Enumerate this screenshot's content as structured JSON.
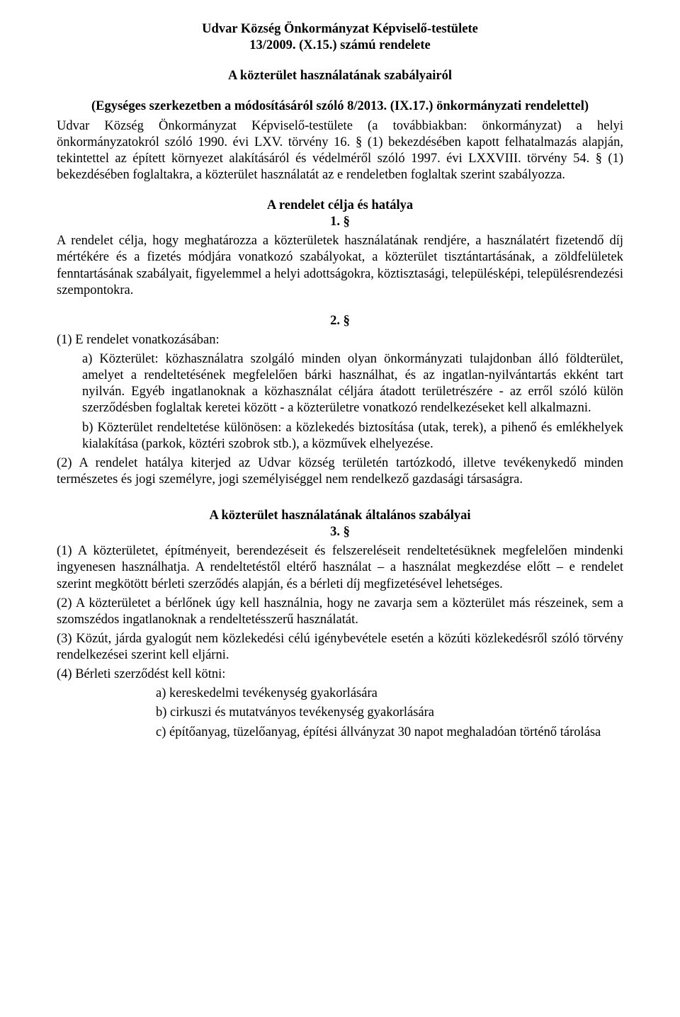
{
  "header": {
    "line1": "Udvar Község Önkormányzat Képviselő-testülete",
    "line2": "13/2009. (X.15.) számú rendelete",
    "subtitle": "A közterület használatának szabályairól",
    "amend": "(Egységes szerkezetben a módosításáról szóló 8/2013. (IX.17.) önkormányzati rendelettel)"
  },
  "preamble": "Udvar Község Önkormányzat Képviselő-testülete (a továbbiakban: önkormányzat) a helyi önkormányzatokról szóló 1990. évi LXV. törvény 16. § (1) bekezdésében kapott felhatalmazás alapján, tekintettel az épített környezet alakításáról és védelméről szóló 1997. évi LXXVIII. törvény 54. § (1) bekezdésében foglaltakra, a közterület használatát az e rendeletben foglaltak szerint szabályozza.",
  "section1": {
    "heading": "A rendelet célja és hatálya",
    "num": "1. §",
    "body": "A rendelet célja, hogy meghatározza a közterületek használatának rendjére, a használatért fizetendő díj mértékére és a fizetés módjára vonatkozó szabályokat, a közterület tisztántartásának, a zöldfelületek fenntartásának szabályait, figyelemmel a helyi adottságokra, köztisztasági, településképi, településrendezési szempontokra."
  },
  "section2": {
    "num": "2. §",
    "p1_lead": "(1)  E rendelet vonatkozásában:",
    "p1_a": "a) Közterület: közhasználatra szolgáló minden olyan önkormányzati tulajdonban álló földterület, amelyet a rendeltetésének megfelelően bárki használhat, és az ingatlan-nyilvántartás ekként tart nyilván. Egyéb ingatlanoknak a közhasználat céljára átadott területrészére - az erről szóló külön szerződésben foglaltak keretei között - a közterületre vonatkozó rendelkezéseket kell alkalmazni.",
    "p1_b": "b) Közterület rendeltetése különösen: a közlekedés biztosítása (utak, terek), a pihenő és emlékhelyek kialakítása (parkok, köztéri szobrok stb.), a közművek elhelyezése.",
    "p2": "(2)  A rendelet hatálya kiterjed az Udvar község területén tartózkodó, illetve tevékenykedő minden természetes és jogi személyre, jogi személyiséggel nem rendelkező gazdasági társaságra."
  },
  "section3": {
    "heading": "A közterület használatának általános szabályai",
    "num": "3. §",
    "p1": "(1)  A közterületet, építményeit, berendezéseit és felszereléseit rendeltetésüknek megfelelően mindenki ingyenesen használhatja. A rendeltetéstől eltérő használat – a használat megkezdése előtt – e rendelet szerint megkötött bérleti szerződés alapján, és a bérleti díj megfizetésével lehetséges.",
    "p2": "(2)  A közterületet a bérlőnek úgy kell használnia, hogy ne zavarja sem a közterület más részeinek, sem a szomszédos ingatlanoknak a rendeltetésszerű használatát.",
    "p3": "(3)  Közút, járda gyalogút nem közlekedési célú igénybevétele esetén a közúti közlekedésről szóló törvény rendelkezései szerint kell eljárni.",
    "p4_lead": "(4)  Bérleti szerződést kell kötni:",
    "p4_a": "a) kereskedelmi tevékenység gyakorlására",
    "p4_b": "b) cirkuszi és mutatványos tevékenység gyakorlására",
    "p4_c": "c) építőanyag, tüzelőanyag, építési állványzat 30 napot meghaladóan történő tárolása"
  }
}
